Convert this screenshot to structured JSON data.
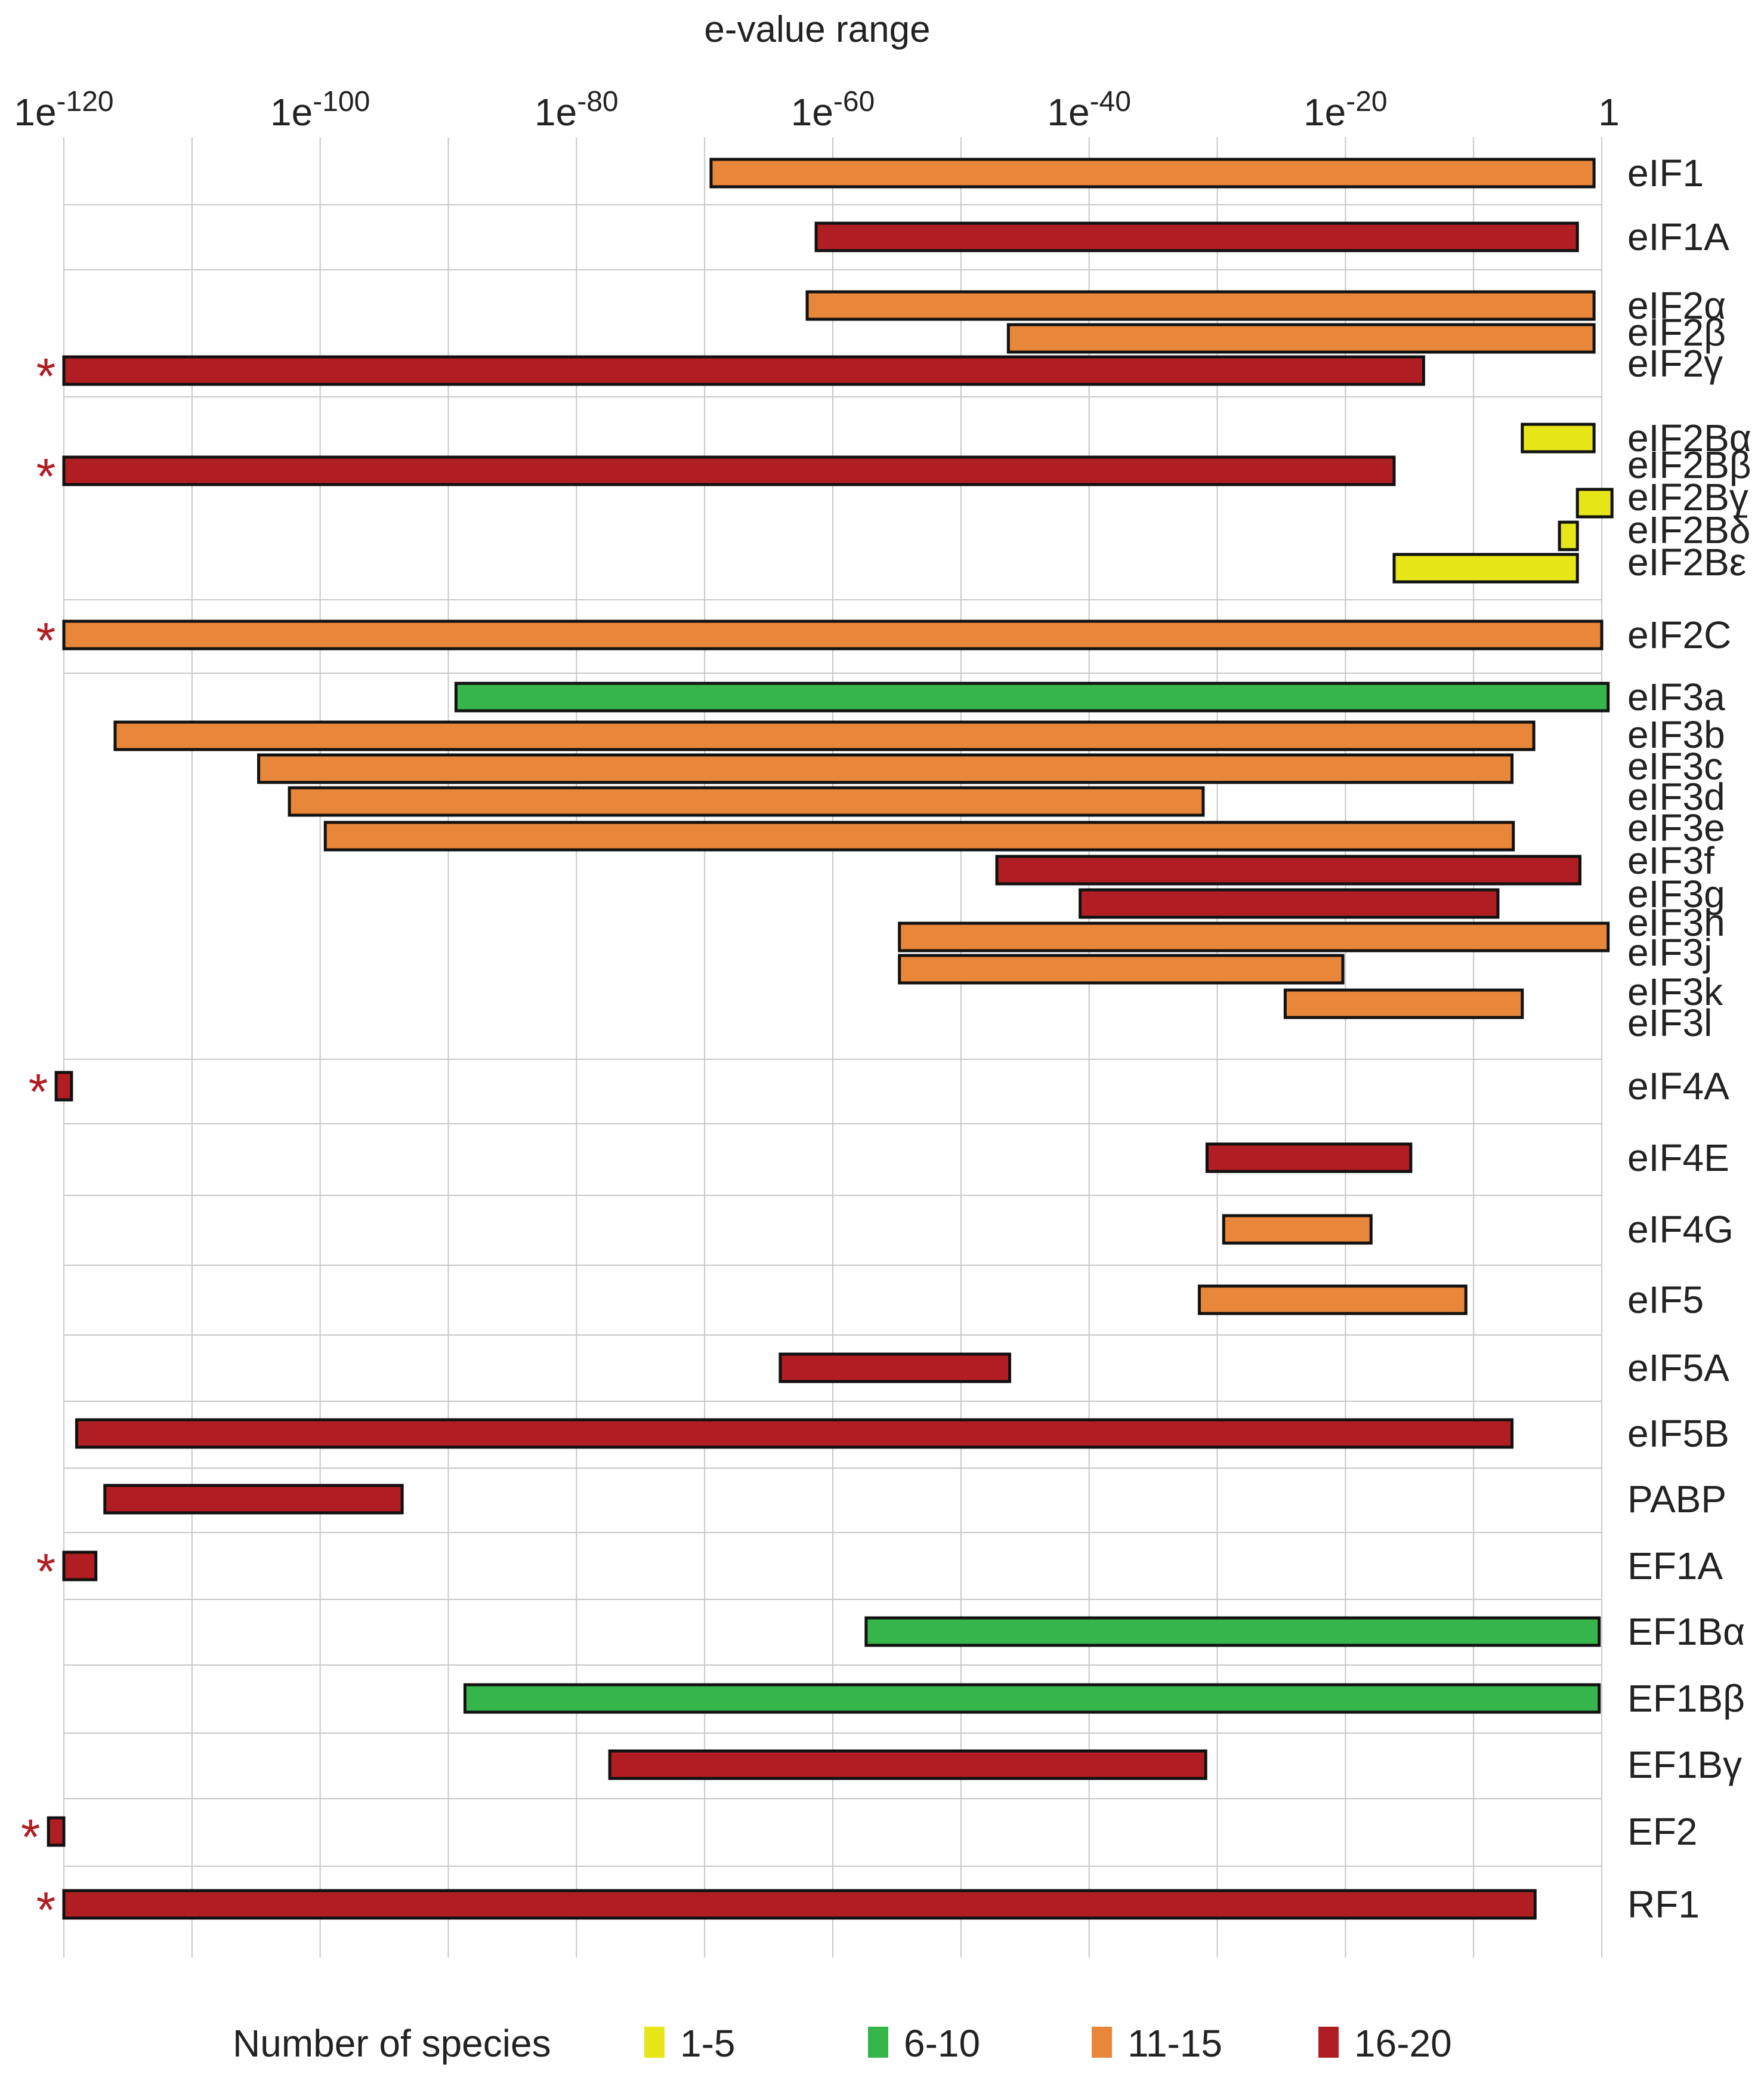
{
  "chart_data": {
    "type": "bar",
    "orientation": "horizontal-range",
    "title": "e-value range",
    "x_axis": {
      "scale": "log10-exponent",
      "xlim": [
        -120,
        0
      ],
      "ticks": [
        {
          "value": -120,
          "base": "1e",
          "exp": "-120"
        },
        {
          "value": -100,
          "base": "1e",
          "exp": "-100"
        },
        {
          "value": -80,
          "base": "1e",
          "exp": "-80"
        },
        {
          "value": -60,
          "base": "1e",
          "exp": "-60"
        },
        {
          "value": -40,
          "base": "1e",
          "exp": "-40"
        },
        {
          "value": -20,
          "base": "1e",
          "exp": "-20"
        },
        {
          "value": 0,
          "base": "1",
          "exp": ""
        }
      ],
      "grid": true,
      "grid_step": 10
    },
    "species_groups": {
      "1-5": "#e6e619",
      "6-10": "#35b54a",
      "11-15": "#e8863a",
      "16-20": "#b01e24"
    },
    "rows": [
      {
        "label": "eIF1",
        "start": -69.5,
        "end": -0.6,
        "group": "11-15",
        "star": false
      },
      {
        "label": "eIF1A",
        "start": -61.3,
        "end": -1.9,
        "group": "16-20",
        "star": false
      },
      {
        "label": "eIF2α",
        "start": -62.0,
        "end": -0.6,
        "group": "11-15",
        "star": false
      },
      {
        "label": "eIF2β",
        "start": -46.3,
        "end": -0.6,
        "group": "11-15",
        "star": false
      },
      {
        "label": "eIF2γ",
        "start": -120.0,
        "end": -13.9,
        "group": "16-20",
        "star": true
      },
      {
        "label": "eIF2Bα",
        "start": -6.2,
        "end": -0.6,
        "group": "1-5",
        "star": false
      },
      {
        "label": "eIF2Bβ",
        "start": -120.0,
        "end": -16.2,
        "group": "16-20",
        "star": true
      },
      {
        "label": "eIF2Bγ",
        "start": -1.9,
        "end": 0.8,
        "group": "1-5",
        "star": false
      },
      {
        "label": "eIF2Bδ",
        "start": -3.3,
        "end": -1.9,
        "group": "1-5",
        "star": false
      },
      {
        "label": "eIF2Bε",
        "start": -16.2,
        "end": -1.9,
        "group": "1-5",
        "star": false
      },
      {
        "label": "eIF2C",
        "start": -120.0,
        "end": 0.0,
        "group": "11-15",
        "star": true
      },
      {
        "label": "eIF3a",
        "start": -89.4,
        "end": 0.5,
        "group": "6-10",
        "star": false
      },
      {
        "label": "eIF3b",
        "start": -116.0,
        "end": -5.3,
        "group": "11-15",
        "star": false
      },
      {
        "label": "eIF3c",
        "start": -104.8,
        "end": -7.0,
        "group": "11-15",
        "star": false
      },
      {
        "label": "eIF3d",
        "start": -102.4,
        "end": -31.1,
        "group": "11-15",
        "star": false
      },
      {
        "label": "eIF3e",
        "start": -99.6,
        "end": -6.9,
        "group": "11-15",
        "star": false
      },
      {
        "label": "eIF3f",
        "start": -47.2,
        "end": -1.7,
        "group": "16-20",
        "star": false
      },
      {
        "label": "eIF3g",
        "start": -40.7,
        "end": -8.1,
        "group": "16-20",
        "star": false
      },
      {
        "label": "eIF3h",
        "start": -54.8,
        "end": 0.5,
        "group": "11-15",
        "star": false
      },
      {
        "label": "eIF3j",
        "start": -54.8,
        "end": -20.2,
        "group": "11-15",
        "star": false
      },
      {
        "label": "eIF3k",
        "start": -24.7,
        "end": -6.2,
        "group": "11-15",
        "star": false
      },
      {
        "label": "eIF3l",
        "start": null,
        "end": null,
        "group": null,
        "star": false
      },
      {
        "label": "eIF4A",
        "start": -120.6,
        "end": -119.4,
        "group": "16-20",
        "star": true
      },
      {
        "label": "eIF4E",
        "start": -30.8,
        "end": -14.9,
        "group": "16-20",
        "star": false
      },
      {
        "label": "eIF4G",
        "start": -29.5,
        "end": -18.0,
        "group": "11-15",
        "star": false
      },
      {
        "label": "eIF5",
        "start": -31.4,
        "end": -10.6,
        "group": "11-15",
        "star": false
      },
      {
        "label": "eIF5A",
        "start": -64.1,
        "end": -46.2,
        "group": "16-20",
        "star": false
      },
      {
        "label": "eIF5B",
        "start": -119.0,
        "end": -7.0,
        "group": "16-20",
        "star": false
      },
      {
        "label": "PABP",
        "start": -116.8,
        "end": -93.6,
        "group": "16-20",
        "star": false
      },
      {
        "label": "EF1A",
        "start": -120.0,
        "end": -117.5,
        "group": "16-20",
        "star": true
      },
      {
        "label": "EF1Bα",
        "start": -57.4,
        "end": -0.2,
        "group": "6-10",
        "star": false
      },
      {
        "label": "EF1Bβ",
        "start": -88.7,
        "end": -0.2,
        "group": "6-10",
        "star": false
      },
      {
        "label": "EF1Bγ",
        "start": -77.4,
        "end": -30.9,
        "group": "16-20",
        "star": false
      },
      {
        "label": "EF2",
        "start": -121.2,
        "end": -120.0,
        "group": "16-20",
        "star": true
      },
      {
        "label": "RF1",
        "start": -120.0,
        "end": -5.2,
        "group": "16-20",
        "star": true
      }
    ],
    "star_symbol": "*",
    "legend": {
      "title": "Number of species",
      "placement": "bottom",
      "entries": [
        {
          "label": "1-5",
          "group": "1-5"
        },
        {
          "label": "6-10",
          "group": "6-10"
        },
        {
          "label": "11-15",
          "group": "11-15"
        },
        {
          "label": "16-20",
          "group": "16-20"
        }
      ]
    }
  }
}
